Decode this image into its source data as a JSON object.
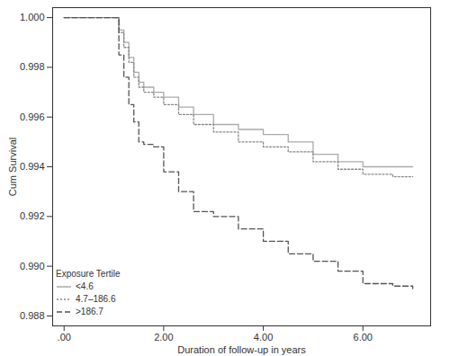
{
  "chart_data": {
    "type": "line",
    "x_label": "Duration of follow-up in years",
    "y_label": "Cum Survival",
    "legend_title": "Exposure Tertile",
    "legend": "bottom-left",
    "x": [
      0,
      0.95,
      1.1,
      1.2,
      1.3,
      1.4,
      1.5,
      1.6,
      1.8,
      2.0,
      2.3,
      2.6,
      3.0,
      3.5,
      4.0,
      4.5,
      5.0,
      5.5,
      6.0,
      6.6,
      7.0
    ],
    "series": [
      {
        "name": "<4.6",
        "color": "#aaaaaa",
        "line_style": "solid",
        "values": [
          1.0,
          1.0,
          0.9995,
          0.999,
          0.9984,
          0.9978,
          0.9974,
          0.9972,
          0.997,
          0.9968,
          0.9964,
          0.9961,
          0.9957,
          0.9955,
          0.9953,
          0.995,
          0.9945,
          0.9942,
          0.994,
          0.994,
          0.994
        ]
      },
      {
        "name": "4.7–186.6",
        "color": "#888888",
        "line_style": "dotted",
        "values": [
          1.0,
          1.0,
          0.9994,
          0.9988,
          0.9982,
          0.9976,
          0.9972,
          0.997,
          0.9968,
          0.9965,
          0.9961,
          0.9957,
          0.9954,
          0.995,
          0.9948,
          0.9946,
          0.9942,
          0.9939,
          0.9937,
          0.9936,
          0.9936
        ]
      },
      {
        "name": ">186.7",
        "color": "#555555",
        "line_style": "dashed",
        "values": [
          1.0,
          1.0,
          0.9985,
          0.9976,
          0.9965,
          0.9958,
          0.995,
          0.9949,
          0.9948,
          0.9938,
          0.993,
          0.9922,
          0.992,
          0.9915,
          0.991,
          0.9905,
          0.9902,
          0.9898,
          0.9893,
          0.9892,
          0.9891
        ]
      }
    ],
    "xlim": [
      -0.23,
      7.36
    ],
    "ylim": [
      0.9876,
      1.0004
    ],
    "xticks": [
      {
        "value": 0,
        "label": ".00"
      },
      {
        "value": 2,
        "label": "2.00"
      },
      {
        "value": 4,
        "label": "4.00"
      },
      {
        "value": 6,
        "label": "6.00"
      }
    ],
    "yticks": [
      0.988,
      {
        "value": 0.99,
        "label": "0.990"
      },
      0.992,
      0.994,
      0.996,
      0.998,
      {
        "value": 1.0,
        "label": "1.000"
      }
    ],
    "grid": false
  }
}
